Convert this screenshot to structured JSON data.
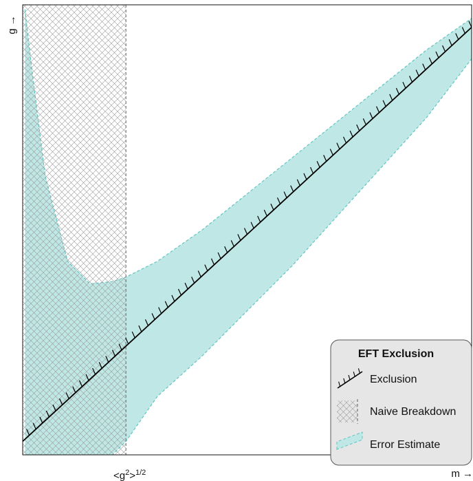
{
  "chart_data": {
    "type": "area",
    "title": "",
    "xlabel": "m →",
    "ylabel": "g →",
    "xtick_label": "<g²>¹ᐟ²",
    "xtick_base": "<g",
    "xtick_sup1": "2",
    "xtick_mid": ">",
    "xtick_sup2": "1/2",
    "xlim": [
      0,
      1
    ],
    "ylim": [
      0,
      1
    ],
    "grid": false,
    "legend_placement": "bottom-right",
    "legend_title": "EFT Exclusion",
    "series": [
      {
        "name": "Exclusion",
        "kind": "hatched-line",
        "x": [
          0,
          1
        ],
        "y": [
          0.03,
          0.95
        ]
      },
      {
        "name": "Naive Breakdown",
        "kind": "crosshatch-region",
        "x_max": 0.23,
        "y_range": [
          0,
          1
        ]
      },
      {
        "name": "Error Estimate",
        "kind": "band",
        "x": [
          0.005,
          0.02,
          0.05,
          0.1,
          0.15,
          0.2,
          0.23,
          0.3,
          0.4,
          0.5,
          0.6,
          0.7,
          0.8,
          0.9,
          1.0
        ],
        "upper": [
          0.99,
          0.86,
          0.62,
          0.43,
          0.38,
          0.385,
          0.395,
          0.43,
          0.5,
          0.58,
          0.66,
          0.74,
          0.82,
          0.9,
          0.97
        ],
        "lower": [
          0.0,
          0.0,
          0.0,
          0.0,
          0.0,
          0.0,
          0.03,
          0.13,
          0.22,
          0.32,
          0.42,
          0.53,
          0.64,
          0.75,
          0.88
        ]
      }
    ],
    "colors": {
      "band_fill": "#bfe7e5",
      "band_edge": "#5fc5c2",
      "exclusion_line": "#000000",
      "breakdown_line": "#777777",
      "hatch": "#9a9a9a",
      "legend_bg": "#e6e6e6"
    }
  },
  "legend": {
    "title": "EFT Exclusion",
    "items": [
      {
        "label": "Exclusion",
        "icon": "exclusion-hatched-line-icon"
      },
      {
        "label": "Naive Breakdown",
        "icon": "crosshatch-swatch-icon"
      },
      {
        "label": "Error Estimate",
        "icon": "error-band-swatch-icon"
      }
    ]
  }
}
